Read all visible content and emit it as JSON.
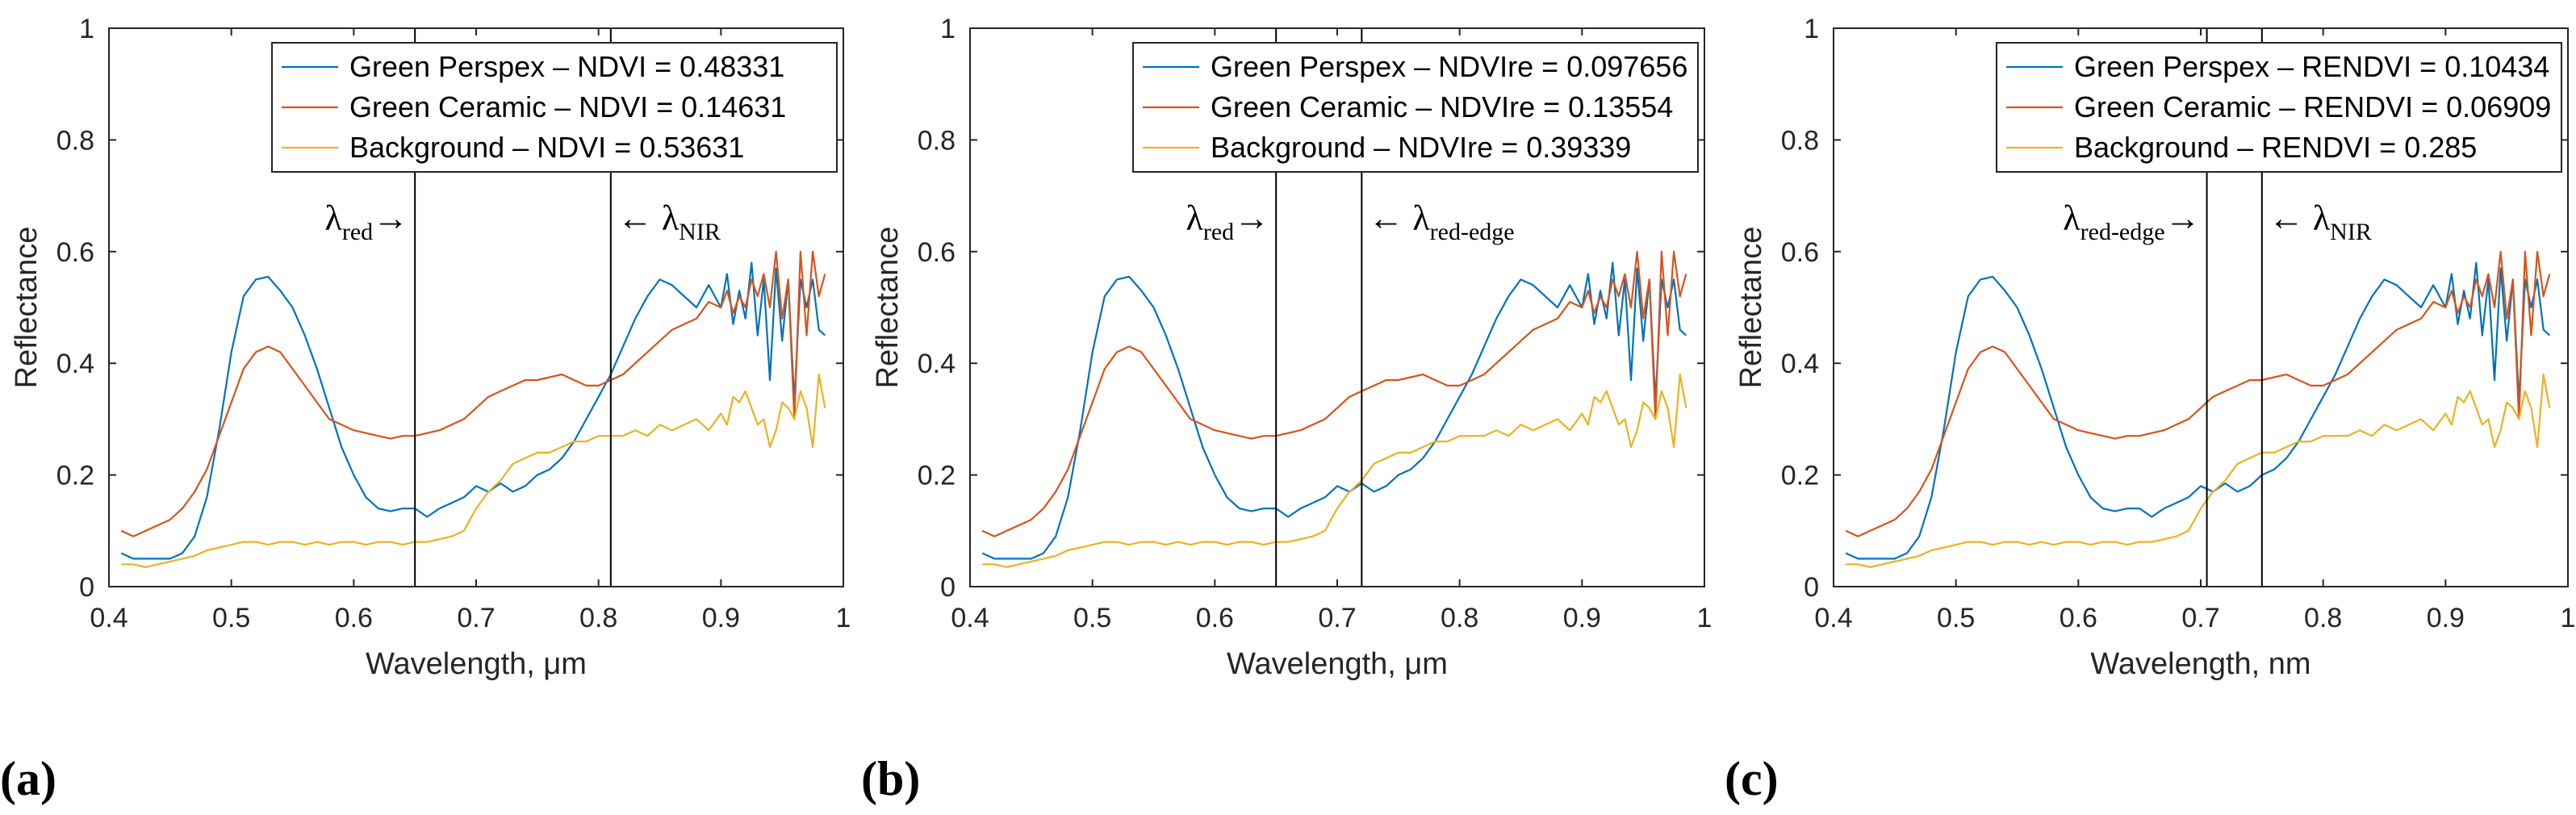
{
  "colors": {
    "perspex": "#0072BD",
    "ceramic": "#D95319",
    "background": "#EDB120"
  },
  "chart_data": [
    {
      "type": "line",
      "panel_label": "(a)",
      "xlabel": "Wavelength, μm",
      "ylabel": "Reflectance",
      "xlim": [
        0.4,
        1.0
      ],
      "ylim": [
        0,
        1
      ],
      "xticks": [
        "0.4",
        "0.5",
        "0.6",
        "0.7",
        "0.8",
        "0.9",
        "1"
      ],
      "yticks": [
        "0",
        "0.2",
        "0.4",
        "0.6",
        "0.8",
        "1"
      ],
      "legend_position": "top-right",
      "bands": [
        {
          "x": 0.65,
          "symbol": "λ",
          "sub": "red",
          "arrow": "→",
          "side": "left"
        },
        {
          "x": 0.81,
          "symbol": "λ",
          "sub": "NIR",
          "arrow": "←",
          "side": "right"
        }
      ],
      "series": [
        {
          "name": "Green Perspex – NDVI = 0.48331",
          "color_key": "perspex"
        },
        {
          "name": "Green Ceramic – NDVI = 0.14631",
          "color_key": "ceramic"
        },
        {
          "name": "Background – NDVI = 0.53631",
          "color_key": "background"
        }
      ]
    },
    {
      "type": "line",
      "panel_label": "(b)",
      "xlabel": "Wavelength, μm",
      "ylabel": "Reflectance",
      "xlim": [
        0.4,
        1.0
      ],
      "ylim": [
        0,
        1
      ],
      "xticks": [
        "0.4",
        "0.5",
        "0.6",
        "0.7",
        "0.8",
        "0.9",
        "1"
      ],
      "yticks": [
        "0",
        "0.2",
        "0.4",
        "0.6",
        "0.8",
        "1"
      ],
      "legend_position": "top-right",
      "bands": [
        {
          "x": 0.65,
          "symbol": "λ",
          "sub": "red",
          "arrow": "→",
          "side": "left"
        },
        {
          "x": 0.72,
          "symbol": "λ",
          "sub": "red-edge",
          "arrow": "←",
          "side": "right"
        }
      ],
      "series": [
        {
          "name": "Green Perspex – NDVIre = 0.097656",
          "color_key": "perspex"
        },
        {
          "name": "Green Ceramic – NDVIre = 0.13554",
          "color_key": "ceramic"
        },
        {
          "name": "Background – NDVIre = 0.39339",
          "color_key": "background"
        }
      ]
    },
    {
      "type": "line",
      "panel_label": "(c)",
      "xlabel": "Wavelength, nm",
      "ylabel": "Reflectance",
      "xlim": [
        0.4,
        1.0
      ],
      "ylim": [
        0,
        1
      ],
      "xticks": [
        "0.4",
        "0.5",
        "0.6",
        "0.7",
        "0.8",
        "0.9",
        "1"
      ],
      "yticks": [
        "0",
        "0.2",
        "0.4",
        "0.6",
        "0.8",
        "1"
      ],
      "legend_position": "top-right",
      "bands": [
        {
          "x": 0.705,
          "symbol": "λ",
          "sub": "red-edge",
          "arrow": "→",
          "side": "left"
        },
        {
          "x": 0.75,
          "symbol": "λ",
          "sub": "NIR",
          "arrow": "←",
          "side": "right"
        }
      ],
      "series": [
        {
          "name": "Green Perspex – RENDVI = 0.10434",
          "color_key": "perspex"
        },
        {
          "name": "Green Ceramic – RENDVI = 0.06909",
          "color_key": "ceramic"
        },
        {
          "name": "Background – RENDVI = 0.285",
          "color_key": "background"
        }
      ]
    }
  ],
  "spectra": {
    "x": [
      0.41,
      0.42,
      0.43,
      0.44,
      0.45,
      0.46,
      0.47,
      0.48,
      0.49,
      0.5,
      0.51,
      0.52,
      0.53,
      0.54,
      0.55,
      0.56,
      0.57,
      0.58,
      0.59,
      0.6,
      0.61,
      0.62,
      0.63,
      0.64,
      0.65,
      0.66,
      0.67,
      0.68,
      0.69,
      0.7,
      0.71,
      0.72,
      0.73,
      0.74,
      0.75,
      0.76,
      0.77,
      0.78,
      0.79,
      0.8,
      0.81,
      0.82,
      0.83,
      0.84,
      0.85,
      0.86,
      0.87,
      0.88,
      0.89,
      0.9,
      0.905,
      0.91,
      0.915,
      0.92,
      0.925,
      0.93,
      0.935,
      0.94,
      0.945,
      0.95,
      0.955,
      0.96,
      0.965,
      0.97,
      0.975,
      0.98,
      0.985
    ],
    "perspex": [
      0.06,
      0.05,
      0.05,
      0.05,
      0.05,
      0.06,
      0.09,
      0.16,
      0.28,
      0.42,
      0.52,
      0.55,
      0.555,
      0.53,
      0.5,
      0.45,
      0.39,
      0.32,
      0.25,
      0.2,
      0.16,
      0.14,
      0.135,
      0.14,
      0.14,
      0.125,
      0.14,
      0.15,
      0.16,
      0.18,
      0.17,
      0.185,
      0.17,
      0.18,
      0.2,
      0.21,
      0.23,
      0.26,
      0.3,
      0.34,
      0.38,
      0.43,
      0.48,
      0.52,
      0.55,
      0.54,
      0.52,
      0.5,
      0.54,
      0.5,
      0.56,
      0.47,
      0.53,
      0.48,
      0.58,
      0.45,
      0.55,
      0.37,
      0.57,
      0.44,
      0.55,
      0.33,
      0.55,
      0.5,
      0.55,
      0.46,
      0.45
    ],
    "ceramic": [
      0.1,
      0.09,
      0.1,
      0.11,
      0.12,
      0.14,
      0.17,
      0.21,
      0.27,
      0.33,
      0.39,
      0.42,
      0.43,
      0.42,
      0.39,
      0.36,
      0.33,
      0.3,
      0.29,
      0.28,
      0.275,
      0.27,
      0.265,
      0.27,
      0.27,
      0.275,
      0.28,
      0.29,
      0.3,
      0.32,
      0.34,
      0.35,
      0.36,
      0.37,
      0.37,
      0.375,
      0.38,
      0.37,
      0.36,
      0.36,
      0.37,
      0.38,
      0.4,
      0.42,
      0.44,
      0.46,
      0.47,
      0.48,
      0.51,
      0.5,
      0.53,
      0.49,
      0.52,
      0.5,
      0.55,
      0.52,
      0.56,
      0.5,
      0.6,
      0.48,
      0.55,
      0.3,
      0.6,
      0.45,
      0.6,
      0.52,
      0.56
    ],
    "background": [
      0.04,
      0.04,
      0.035,
      0.04,
      0.045,
      0.05,
      0.055,
      0.065,
      0.07,
      0.075,
      0.08,
      0.08,
      0.075,
      0.08,
      0.08,
      0.075,
      0.08,
      0.075,
      0.08,
      0.08,
      0.075,
      0.08,
      0.08,
      0.075,
      0.08,
      0.08,
      0.085,
      0.09,
      0.1,
      0.14,
      0.17,
      0.19,
      0.22,
      0.23,
      0.24,
      0.24,
      0.25,
      0.26,
      0.26,
      0.27,
      0.27,
      0.27,
      0.28,
      0.27,
      0.29,
      0.28,
      0.29,
      0.3,
      0.28,
      0.31,
      0.29,
      0.34,
      0.33,
      0.35,
      0.32,
      0.29,
      0.3,
      0.25,
      0.28,
      0.33,
      0.32,
      0.3,
      0.35,
      0.32,
      0.25,
      0.38,
      0.32
    ]
  }
}
